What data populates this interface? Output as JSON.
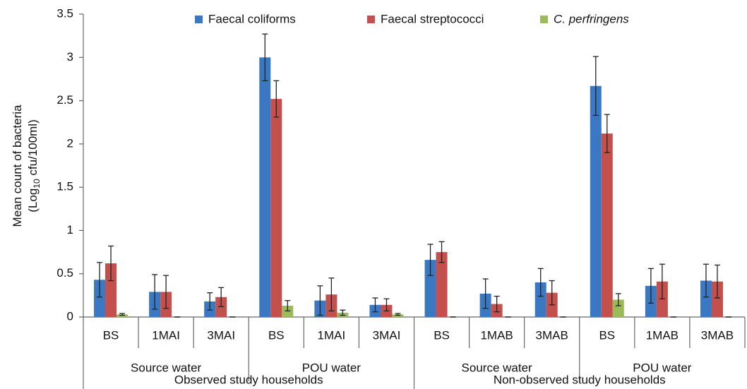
{
  "chart_data": {
    "type": "bar",
    "ylabel": [
      "Mean count of bacteria",
      "(Log",
      "10",
      " cfu/100ml)"
    ],
    "categories": [
      "BS",
      "1MAI",
      "3MAI",
      "BS",
      "1MAI",
      "3MAI",
      "BS",
      "1MAB",
      "3MAB",
      "BS",
      "1MAB",
      "3MAB"
    ],
    "subgroups": [
      "Source water",
      "POU water",
      "Source water",
      "POU water"
    ],
    "groups": [
      "Observed study households",
      "Non-observed study households"
    ],
    "series": [
      {
        "name": "Faecal coliforms",
        "color": "#3b78c3",
        "values": [
          0.43,
          0.29,
          0.18,
          3.0,
          0.19,
          0.14,
          0.66,
          0.27,
          0.4,
          2.67,
          0.36,
          0.42
        ],
        "errors": [
          0.2,
          0.2,
          0.1,
          0.27,
          0.17,
          0.08,
          0.18,
          0.17,
          0.16,
          0.34,
          0.2,
          0.19
        ]
      },
      {
        "name": "Faecal streptococci",
        "color": "#c4504d",
        "values": [
          0.62,
          0.29,
          0.23,
          2.52,
          0.26,
          0.14,
          0.75,
          0.15,
          0.28,
          2.12,
          0.41,
          0.41
        ],
        "errors": [
          0.2,
          0.19,
          0.11,
          0.21,
          0.19,
          0.07,
          0.12,
          0.09,
          0.14,
          0.22,
          0.2,
          0.19
        ]
      },
      {
        "name": "C. perfringens",
        "color": "#9bbb59",
        "italic": true,
        "values": [
          0.03,
          0,
          0,
          0.13,
          0.05,
          0.03,
          0,
          0,
          0,
          0.2,
          0,
          0
        ],
        "errors": [
          0.01,
          0,
          0,
          0.06,
          0.03,
          0.01,
          0,
          0,
          0,
          0.07,
          0,
          0
        ]
      }
    ],
    "ylim": [
      0,
      3.5
    ],
    "yticks": [
      0,
      0.5,
      1,
      1.5,
      2,
      2.5,
      3,
      3.5
    ]
  }
}
